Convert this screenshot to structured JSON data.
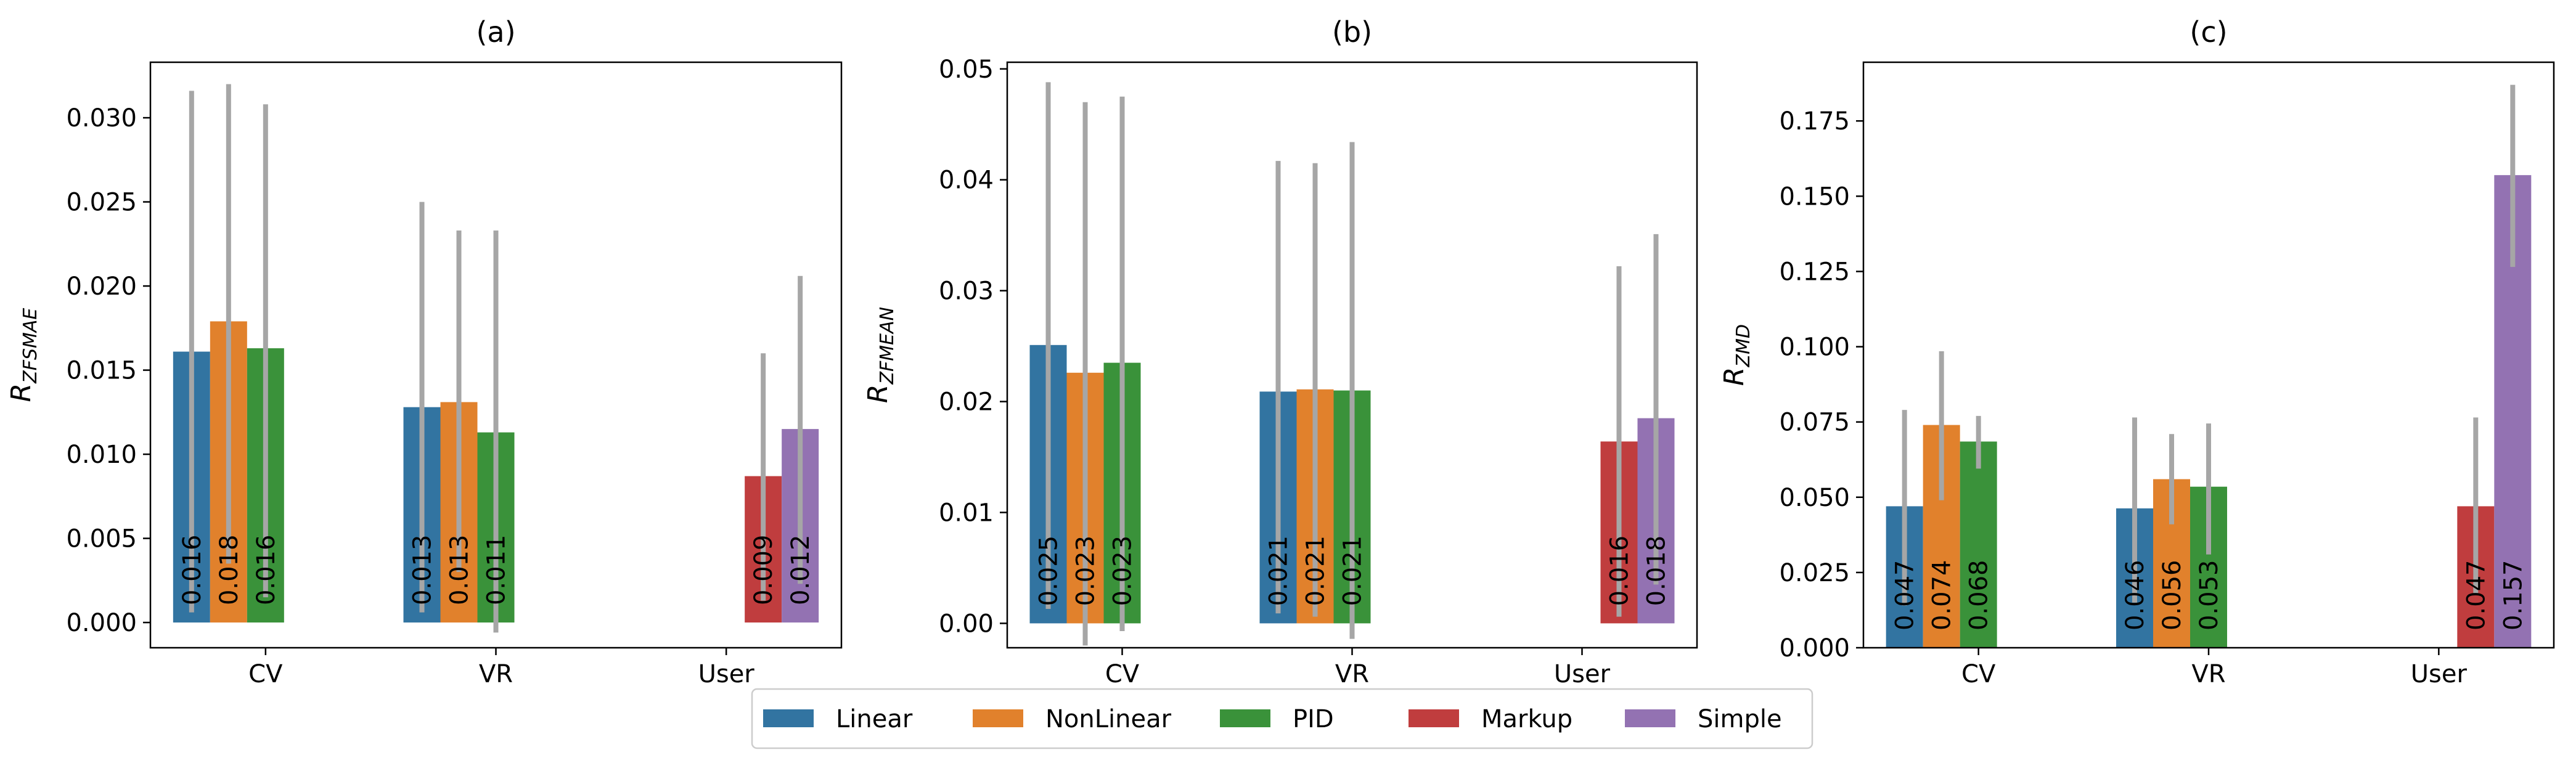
{
  "colors": {
    "Linear": "#3274a1",
    "NonLinear": "#e1812c",
    "PID": "#3a923a",
    "Markup": "#c03d3e",
    "Simple": "#9372b2",
    "errorbar": "#a6a6a6"
  },
  "legend": {
    "entries": [
      "Linear",
      "NonLinear",
      "PID",
      "Markup",
      "Simple"
    ],
    "position": "bottom-center"
  },
  "chart_data": [
    {
      "type": "bar",
      "title": "(a)",
      "ylabel": {
        "base": "R",
        "subscript": "ZFSMAE"
      },
      "xlabel": "",
      "categories": [
        "CV",
        "VR",
        "User"
      ],
      "ylim": [
        -0.0015,
        0.0333
      ],
      "yticks": [
        0.0,
        0.005,
        0.01,
        0.015,
        0.02,
        0.025,
        0.03
      ],
      "ytick_labels": [
        "0.000",
        "0.005",
        "0.010",
        "0.015",
        "0.020",
        "0.025",
        "0.030"
      ],
      "series": [
        {
          "name": "Linear",
          "values": [
            0.0161,
            0.0128,
            null
          ],
          "labels": [
            "0.016",
            "0.013",
            ""
          ],
          "err": [
            [
              0.0006,
              0.0316
            ],
            [
              0.0006,
              0.025
            ],
            null
          ]
        },
        {
          "name": "NonLinear",
          "values": [
            0.0179,
            0.0131,
            null
          ],
          "labels": [
            "0.018",
            "0.013",
            ""
          ],
          "err": [
            [
              0.0035,
              0.032
            ],
            [
              0.003,
              0.0233
            ],
            null
          ]
        },
        {
          "name": "PID",
          "values": [
            0.0163,
            0.0113,
            null
          ],
          "labels": [
            "0.016",
            "0.011",
            ""
          ],
          "err": [
            [
              0.0015,
              0.0308
            ],
            [
              -0.0006,
              0.0233
            ],
            null
          ]
        },
        {
          "name": "Markup",
          "values": [
            null,
            null,
            0.0087
          ],
          "labels": [
            "",
            "",
            "0.009"
          ],
          "err": [
            null,
            null,
            [
              0.0013,
              0.016
            ]
          ]
        },
        {
          "name": "Simple",
          "values": [
            null,
            null,
            0.0115
          ],
          "labels": [
            "",
            "",
            "0.012"
          ],
          "err": [
            null,
            null,
            [
              0.0023,
              0.0206
            ]
          ]
        }
      ]
    },
    {
      "type": "bar",
      "title": "(b)",
      "ylabel": {
        "base": "R",
        "subscript": "ZFMEAN"
      },
      "xlabel": "",
      "categories": [
        "CV",
        "VR",
        "User"
      ],
      "ylim": [
        -0.0022,
        0.0506
      ],
      "yticks": [
        0.0,
        0.01,
        0.02,
        0.03,
        0.04,
        0.05
      ],
      "ytick_labels": [
        "0.00",
        "0.01",
        "0.02",
        "0.03",
        "0.04",
        "0.05"
      ],
      "series": [
        {
          "name": "Linear",
          "values": [
            0.0251,
            0.0209,
            null
          ],
          "labels": [
            "0.025",
            "0.021",
            ""
          ],
          "err": [
            [
              0.0013,
              0.0488
            ],
            [
              0.0009,
              0.0417
            ],
            null
          ]
        },
        {
          "name": "NonLinear",
          "values": [
            0.0226,
            0.0211,
            null
          ],
          "labels": [
            "0.023",
            "0.021",
            ""
          ],
          "err": [
            [
              -0.002,
              0.047
            ],
            [
              0.0006,
              0.0415
            ],
            null
          ]
        },
        {
          "name": "PID",
          "values": [
            0.0235,
            0.021,
            null
          ],
          "labels": [
            "0.023",
            "0.021",
            ""
          ],
          "err": [
            [
              -0.0007,
              0.0475
            ],
            [
              -0.0014,
              0.0434
            ],
            null
          ]
        },
        {
          "name": "Markup",
          "values": [
            null,
            null,
            0.0164
          ],
          "labels": [
            "",
            "",
            "0.016"
          ],
          "err": [
            null,
            null,
            [
              0.0006,
              0.0322
            ]
          ]
        },
        {
          "name": "Simple",
          "values": [
            null,
            null,
            0.0185
          ],
          "labels": [
            "",
            "",
            "0.018"
          ],
          "err": [
            null,
            null,
            [
              0.0035,
              0.0351
            ]
          ]
        }
      ]
    },
    {
      "type": "bar",
      "title": "(c)",
      "ylabel": {
        "base": "R",
        "subscript": "ZMD"
      },
      "xlabel": "",
      "categories": [
        "CV",
        "VR",
        "User"
      ],
      "ylim": [
        0.0,
        0.1945
      ],
      "yticks": [
        0.0,
        0.025,
        0.05,
        0.075,
        0.1,
        0.125,
        0.15,
        0.175
      ],
      "ytick_labels": [
        "0.000",
        "0.025",
        "0.050",
        "0.075",
        "0.100",
        "0.125",
        "0.150",
        "0.175"
      ],
      "series": [
        {
          "name": "Linear",
          "values": [
            0.047,
            0.0463,
            null
          ],
          "labels": [
            "0.047",
            "0.046",
            ""
          ],
          "err": [
            [
              0.014,
              0.079
            ],
            [
              0.015,
              0.0765
            ],
            null
          ]
        },
        {
          "name": "NonLinear",
          "values": [
            0.074,
            0.056,
            null
          ],
          "labels": [
            "0.074",
            "0.056",
            ""
          ],
          "err": [
            [
              0.049,
              0.0985
            ],
            [
              0.041,
              0.071
            ],
            null
          ]
        },
        {
          "name": "PID",
          "values": [
            0.0685,
            0.0535,
            null
          ],
          "labels": [
            "0.068",
            "0.053",
            ""
          ],
          "err": [
            [
              0.0595,
              0.077
            ],
            [
              0.031,
              0.0745
            ],
            null
          ]
        },
        {
          "name": "Markup",
          "values": [
            null,
            null,
            0.047
          ],
          "labels": [
            "",
            "",
            "0.047"
          ],
          "err": [
            null,
            null,
            [
              0.018,
              0.0765
            ]
          ]
        },
        {
          "name": "Simple",
          "values": [
            null,
            null,
            0.157
          ],
          "labels": [
            "",
            "",
            "0.157"
          ],
          "err": [
            null,
            null,
            [
              0.1265,
              0.187
            ]
          ]
        }
      ]
    }
  ]
}
